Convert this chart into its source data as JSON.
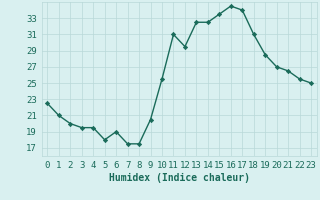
{
  "x": [
    0,
    1,
    2,
    3,
    4,
    5,
    6,
    7,
    8,
    9,
    10,
    11,
    12,
    13,
    14,
    15,
    16,
    17,
    18,
    19,
    20,
    21,
    22,
    23
  ],
  "y": [
    22.5,
    21,
    20,
    19.5,
    19.5,
    18,
    19,
    17.5,
    17.5,
    20.5,
    25.5,
    31,
    29.5,
    32.5,
    32.5,
    33.5,
    34.5,
    34,
    31,
    28.5,
    27,
    26.5,
    25.5,
    25
  ],
  "line_color": "#1a6b5a",
  "marker": "D",
  "marker_size": 2.2,
  "bg_color": "#d9f0f0",
  "grid_color": "#b8d8d8",
  "xlabel": "Humidex (Indice chaleur)",
  "xlabel_fontsize": 7,
  "tick_fontsize": 6.5,
  "ylim": [
    16,
    35
  ],
  "yticks": [
    17,
    19,
    21,
    23,
    25,
    27,
    29,
    31,
    33
  ],
  "xticks": [
    0,
    1,
    2,
    3,
    4,
    5,
    6,
    7,
    8,
    9,
    10,
    11,
    12,
    13,
    14,
    15,
    16,
    17,
    18,
    19,
    20,
    21,
    22,
    23
  ],
  "line_width": 1.0
}
